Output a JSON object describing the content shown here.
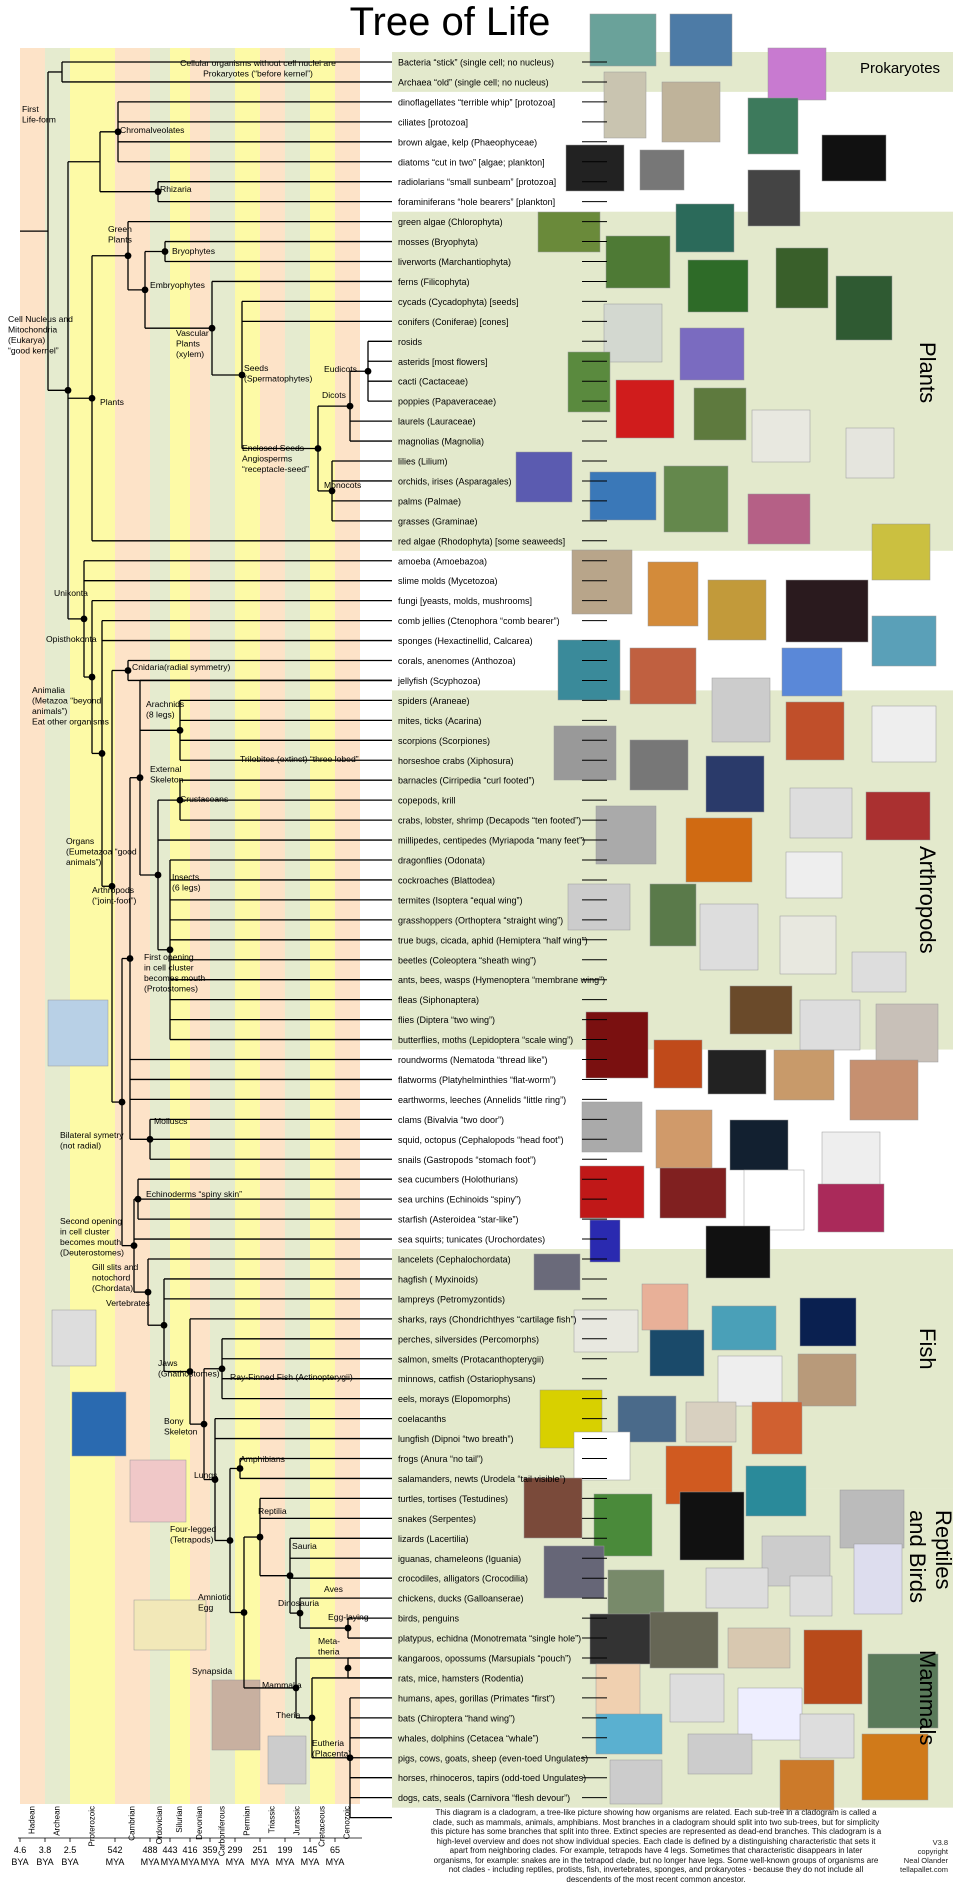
{
  "title": "Tree of Life",
  "group_labels": [
    "Prokaryotes",
    "Plants",
    "Arthropods",
    "Fish",
    "Reptiles and Birds",
    "Mammals"
  ],
  "eras": [
    {
      "name": "Hadean",
      "age": "4.6",
      "unit": "BYA",
      "color": "#fde3c8"
    },
    {
      "name": "Archean",
      "age": "3.8",
      "unit": "BYA",
      "color": "#e5ebcf"
    },
    {
      "name": "Proterozoic",
      "age": "2.5",
      "unit": "BYA",
      "color": "#fdfaa6"
    },
    {
      "name": "Cambrian",
      "age": "542",
      "unit": "MYA",
      "color": "#fde3c8"
    },
    {
      "name": "Ordovician",
      "age": "488",
      "unit": "MYA",
      "color": "#e5ebcf"
    },
    {
      "name": "Silurian",
      "age": "443",
      "unit": "MYA",
      "color": "#fdfaa6"
    },
    {
      "name": "Devonian",
      "age": "416",
      "unit": "MYA",
      "color": "#fde3c8"
    },
    {
      "name": "Carboniferous",
      "age": "359",
      "unit": "MYA",
      "color": "#e5ebcf"
    },
    {
      "name": "Permian",
      "age": "299",
      "unit": "MYA",
      "color": "#fdfaa6"
    },
    {
      "name": "Triassic",
      "age": "251",
      "unit": "MYA",
      "color": "#fde3c8"
    },
    {
      "name": "Jurassic",
      "age": "199",
      "unit": "MYA",
      "color": "#e5ebcf"
    },
    {
      "name": "Cretaceous",
      "age": "145",
      "unit": "MYA",
      "color": "#fdfaa6"
    },
    {
      "name": "Cenozoic",
      "age": "65",
      "unit": "MYA",
      "color": "#fde3c8"
    }
  ],
  "taxa": [
    "Bacteria “stick” (single cell; no nucleus)",
    "Archaea “old” (single cell; no nucleus)",
    "dinoflagellates “terrible whip” [protozoa]",
    "ciliates [protozoa]",
    "brown algae, kelp (Phaeophyceae)",
    "diatoms “cut in two” [algae; plankton]",
    "radiolarians “small sunbeam” [protozoa]",
    "foraminiferans “hole bearers” [plankton]",
    "green algae (Chlorophyta)",
    "mosses (Bryophyta)",
    "liverworts (Marchantiophyta)",
    "ferns (Filicophyta)",
    "cycads (Cycadophyta) [seeds]",
    "conifers (Coniferae) [cones]",
    "rosids",
    "asterids [most flowers]",
    "cacti (Cactaceae)",
    "poppies (Papaveraceae)",
    "laurels (Lauraceae)",
    "magnolias (Magnolia)",
    "lilies (Lilium)",
    "orchids, irises (Asparagales)",
    "palms (Palmae)",
    "grasses (Graminae)",
    "red algae (Rhodophyta) [some seaweeds]",
    "amoeba (Amoebazoa)",
    "slime molds (Mycetozoa)",
    "fungi [yeasts, molds, mushrooms]",
    "comb jellies (Ctenophora “comb bearer”)",
    "sponges (Hexactinellid, Calcarea)",
    "corals, anenomes (Anthozoa)",
    "jellyfish (Scyphozoa)",
    "spiders (Araneae)",
    "mites, ticks (Acarina)",
    "scorpions (Scorpiones)",
    "horseshoe crabs (Xiphosura)",
    "barnacles (Cirripedia “curl footed”)",
    "copepods, krill",
    "crabs, lobster, shrimp (Decapods “ten footed”)",
    "millipedes, centipedes (Myriapoda “many feet”)",
    "dragonflies (Odonata)",
    "cockroaches (Blattodea)",
    "termites (Isoptera “equal wing”)",
    "grasshoppers (Orthoptera “straight wing”)",
    "true bugs, cicada, aphid (Hemiptera “half wing”)",
    "beetles (Coleoptera “sheath wing”)",
    "ants, bees, wasps (Hymenoptera “membrane wing”)",
    "fleas (Siphonaptera)",
    "flies (Diptera “two wing”)",
    "butterflies, moths (Lepidoptera “scale wing”)",
    "roundworms (Nematoda “thread like”)",
    "flatworms (Platyhelminthies “flat-worm”)",
    "earthworms, leeches (Annelids “little ring”)",
    "clams (Bivalvia “two door”)",
    "squid, octopus (Cephalopods “head foot”)",
    "snails (Gastropods “stomach foot”)",
    "sea cucumbers (Holothurians)",
    "sea urchins (Echinoids “spiny”)",
    "starfish (Asteroidea “star-like”)",
    "sea squirts; tunicates (Urochordates)",
    "lancelets (Cephalochordata)",
    "hagfish ( Myxinoids)",
    "lampreys (Petromyzontids)",
    "sharks, rays (Chondrichthyes “cartilage fish”)",
    "perches, silversides (Percomorphs)",
    "salmon, smelts (Protacanthopterygii)",
    "minnows, catfish (Ostariophysans)",
    "eels, morays (Elopomorphs)",
    "coelacanths",
    "lungfish (Dipnoi “two breath”)",
    "frogs (Anura “no tail”)",
    "salamanders, newts (Urodela “tail visible”)",
    "turtles, tortises (Testudines)",
    "snakes (Serpentes)",
    "lizards (Lacertilia)",
    "iguanas, chameleons (Iguania)",
    "crocodiles, alligators (Crocodilia)",
    "chickens, ducks (Galloanserae)",
    "birds, penguins",
    "platypus, echidna (Monotremata “single hole”)",
    "kangaroos, opossums (Marsupials “pouch”)",
    "rats, mice, hamsters (Rodentia)",
    "humans, apes, gorillas (Primates “first”)",
    "bats (Chiroptera “hand wing”)",
    "whales, dolphins (Cetacea “whale”)",
    "pigs, cows, goats, sheep (even-toed Ungulates)",
    "horses, rhinoceros, tapirs (odd-toed Ungulates)",
    "dogs, cats, seals (Carnivora “flesh devour”)"
  ],
  "clades": [
    {
      "label": [
        "Cellular organisms without cell nuclei are",
        "Prokaryotes (“before kernel”)"
      ]
    },
    {
      "label": [
        "First",
        "Life-form"
      ]
    },
    {
      "label": [
        "Chromalveolates"
      ]
    },
    {
      "label": [
        "Rhizaria"
      ]
    },
    {
      "label": [
        "Green",
        "Plants"
      ]
    },
    {
      "label": [
        "Bryophytes"
      ]
    },
    {
      "label": [
        "Embryophytes"
      ]
    },
    {
      "label": [
        "Cell Nucleus and",
        "Mitochondria",
        "(Eukarya)",
        "“good kernel”"
      ]
    },
    {
      "label": [
        "Vascular",
        "Plants",
        "(xylem)"
      ]
    },
    {
      "label": [
        "Seeds",
        "(Spermatophytes)"
      ]
    },
    {
      "label": [
        "Eudicots"
      ]
    },
    {
      "label": [
        "Dicots"
      ]
    },
    {
      "label": [
        "Plants"
      ]
    },
    {
      "label": [
        "Enclosed Seeds",
        "Angiosperms",
        "“receptacle-seed”"
      ]
    },
    {
      "label": [
        "Monocots"
      ]
    },
    {
      "label": [
        "Unikonta"
      ]
    },
    {
      "label": [
        "Opisthokonta"
      ]
    },
    {
      "label": [
        "Cnidaria(radial symmetry)"
      ]
    },
    {
      "label": [
        "Animalia",
        "(Metazoa “beyond",
        "animals”)",
        "Eat other organisms"
      ]
    },
    {
      "label": [
        "Arachnids",
        "(8 legs)"
      ]
    },
    {
      "label": [
        "Trilobites (extinct) “three lobed”"
      ]
    },
    {
      "label": [
        "External",
        "Skeleton"
      ]
    },
    {
      "label": [
        "Crustaceans"
      ]
    },
    {
      "label": [
        "Organs",
        "(Eumetazoa “good",
        "animals”)"
      ]
    },
    {
      "label": [
        "Arthropods",
        "(“joint-foot”)"
      ]
    },
    {
      "label": [
        "Insects",
        "(6 legs)"
      ]
    },
    {
      "label": [
        "First opening",
        "in cell cluster",
        "becomes mouth",
        "(Protostomes)"
      ]
    },
    {
      "label": [
        "Molluscs"
      ]
    },
    {
      "label": [
        "Bilateral symetry",
        "(not radial)"
      ]
    },
    {
      "label": [
        "Echinoderms “spiny skin”"
      ]
    },
    {
      "label": [
        "Second opening",
        "in cell cluster",
        "becomes mouth",
        "(Deuterostomes)"
      ]
    },
    {
      "label": [
        "Gill slits and",
        "notochord",
        "(Chordata)"
      ]
    },
    {
      "label": [
        "Vertebrates"
      ]
    },
    {
      "label": [
        "Jaws",
        "(Gnathostomes)"
      ]
    },
    {
      "label": [
        "Ray-Finned Fish (Actinopterygii)"
      ]
    },
    {
      "label": [
        "Bony",
        "Skeleton"
      ]
    },
    {
      "label": [
        "Amphibians"
      ]
    },
    {
      "label": [
        "Lungs"
      ]
    },
    {
      "label": [
        "Four-legged",
        "(Tetrapods)"
      ]
    },
    {
      "label": [
        "Reptilia"
      ]
    },
    {
      "label": [
        "Sauria"
      ]
    },
    {
      "label": [
        "Dinosauria"
      ]
    },
    {
      "label": [
        "Aves"
      ]
    },
    {
      "label": [
        "Amniotic",
        "Egg"
      ]
    },
    {
      "label": [
        "Egg-laying"
      ]
    },
    {
      "label": [
        "Meta-",
        "theria"
      ]
    },
    {
      "label": [
        "Synapsida"
      ]
    },
    {
      "label": [
        "Mammalia"
      ]
    },
    {
      "label": [
        "Theria"
      ]
    },
    {
      "label": [
        "Eutheria",
        "(Placenta)"
      ]
    }
  ],
  "caption": "This diagram is a cladogram, a tree-like picture showing how organisms are related. Each sub-tree in a cladogram is called a clade, such as mammals, animals, amphibians. Most branches in a cladogram should split into two sub-trees, but for simplicity this picture has some branches that split into three. Extinct species are represented as dead-end branches. This cladogram is a high-level overview and does not show individual species. Each clade is defined by a distinguishing characteristic that sets it apart from neighboring clades. For example, tetrapods have 4 legs. Sometimes that characteristic disappears in later organisms, for example: snakes are in the tetrapod clade, but no longer have legs. Some well-known groups of organisms are not clades - including reptiles, protists, fish, invertebrates, sponges, and prokaryotes - because they do not include all descendents of the most recent common ancestor.",
  "credit": [
    "V3.8",
    "copyright",
    "Neal Olander",
    "tellapallet.com"
  ],
  "colors": {
    "era_a": "#fde3c8",
    "era_b": "#e5ebcf",
    "era_c": "#fdfaa6",
    "group_band": "#e3e9cc",
    "line": "#000000"
  }
}
